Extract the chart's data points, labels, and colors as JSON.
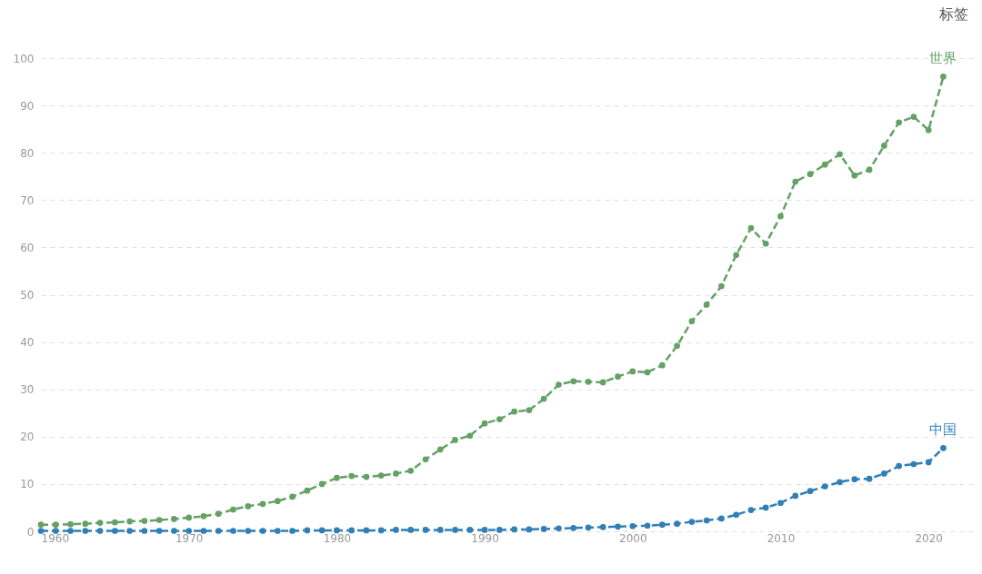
{
  "chart_data": {
    "type": "line",
    "x": [
      1960,
      1961,
      1962,
      1963,
      1964,
      1965,
      1966,
      1967,
      1968,
      1969,
      1970,
      1971,
      1972,
      1973,
      1974,
      1975,
      1976,
      1977,
      1978,
      1979,
      1980,
      1981,
      1982,
      1983,
      1984,
      1985,
      1986,
      1987,
      1988,
      1989,
      1990,
      1991,
      1992,
      1993,
      1994,
      1995,
      1996,
      1997,
      1998,
      1999,
      2000,
      2001,
      2002,
      2003,
      2004,
      2005,
      2006,
      2007,
      2008,
      2009,
      2010,
      2011,
      2012,
      2013,
      2014,
      2015,
      2016,
      2017,
      2018,
      2019,
      2020,
      2021
    ],
    "series": [
      {
        "name": "世界",
        "color": "#64a164",
        "values": [
          1.4,
          1.4,
          1.5,
          1.6,
          1.8,
          1.9,
          2.1,
          2.2,
          2.4,
          2.6,
          2.9,
          3.2,
          3.7,
          4.6,
          5.3,
          5.8,
          6.4,
          7.3,
          8.6,
          10.0,
          11.3,
          11.7,
          11.5,
          11.8,
          12.2,
          12.8,
          15.2,
          17.3,
          19.3,
          20.2,
          22.8,
          23.7,
          25.3,
          25.6,
          28.0,
          31.0,
          31.7,
          31.6,
          31.5,
          32.7,
          33.8,
          33.6,
          35.1,
          39.2,
          44.4,
          47.9,
          51.8,
          58.4,
          64.1,
          60.8,
          66.6,
          73.9,
          75.5,
          77.5,
          79.7,
          75.2,
          76.4,
          81.5,
          86.4,
          87.6,
          84.8,
          96.1
        ]
      },
      {
        "name": "中国",
        "color": "#2f7fb8",
        "values": [
          0.1,
          0.1,
          0.1,
          0.1,
          0.1,
          0.1,
          0.1,
          0.1,
          0.1,
          0.1,
          0.1,
          0.1,
          0.1,
          0.1,
          0.1,
          0.1,
          0.1,
          0.1,
          0.2,
          0.2,
          0.2,
          0.2,
          0.2,
          0.2,
          0.3,
          0.3,
          0.3,
          0.3,
          0.3,
          0.3,
          0.3,
          0.3,
          0.4,
          0.4,
          0.5,
          0.6,
          0.7,
          0.8,
          0.9,
          1.0,
          1.1,
          1.2,
          1.4,
          1.6,
          2.0,
          2.3,
          2.7,
          3.5,
          4.5,
          5.0,
          6.0,
          7.5,
          8.5,
          9.5,
          10.4,
          11.0,
          11.1,
          12.2,
          13.8,
          14.2,
          14.6,
          17.6
        ]
      }
    ],
    "xlim": [
      1960,
      2023
    ],
    "xticks": [
      1960,
      1970,
      1980,
      1990,
      2000,
      2010,
      2020
    ],
    "ylim": [
      0,
      100
    ],
    "yticks": [
      0,
      10,
      20,
      30,
      40,
      50,
      60,
      70,
      80,
      90,
      100
    ],
    "grid": "y",
    "legend": false,
    "marker": "circle",
    "line_style": "dashed",
    "annotations": [
      "标签"
    ]
  }
}
